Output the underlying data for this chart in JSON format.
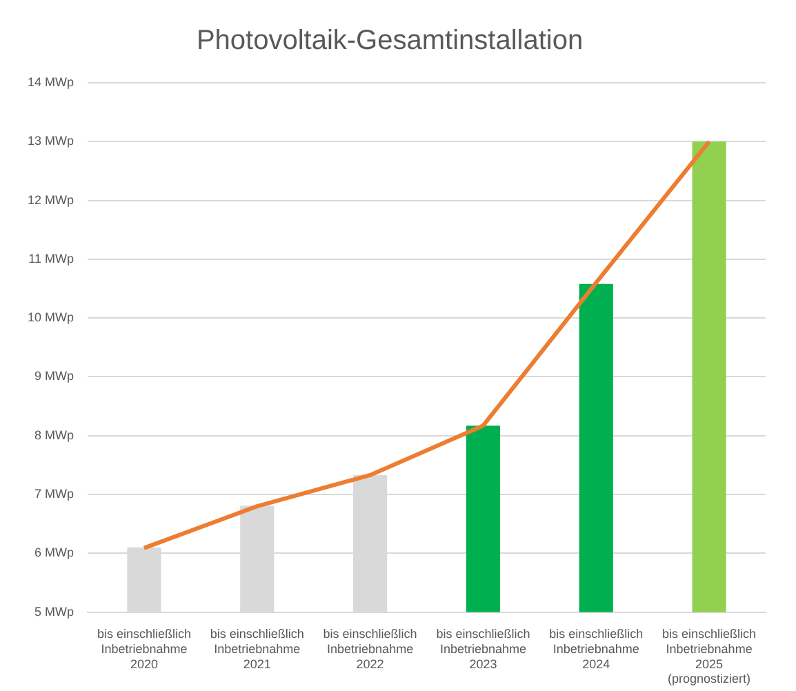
{
  "chart_data": {
    "type": "bar",
    "title": "Photovoltaik-Gesamtinstallation",
    "categories": [
      "bis einschließlich\nInbetriebnahme\n2020",
      "bis einschließlich\nInbetriebnahme\n2021",
      "bis einschließlich\nInbetriebnahme\n2022",
      "bis einschließlich\nInbetriebnahme\n2023",
      "bis einschließlich\nInbetriebnahme\n2024",
      "bis einschließlich\nInbetriebnahme\n2025\n(prognostiziert)"
    ],
    "series": [
      {
        "colors": [
          "#d9d9d9",
          "#d9d9d9",
          "#d9d9d9",
          "#00b050",
          "#00b050",
          "#92d050"
        ],
        "values": [
          6.1,
          6.81,
          7.33,
          8.17,
          10.58,
          13.0
        ]
      },
      {
        "type": "line",
        "color": "#ed7d31",
        "values": [
          6.09,
          6.8,
          7.33,
          8.17,
          10.6,
          13.0
        ]
      }
    ],
    "ylim": [
      5,
      14
    ],
    "yticks": [
      {
        "value": 5,
        "label": "5 MWp"
      },
      {
        "value": 6,
        "label": "6 MWp"
      },
      {
        "value": 7,
        "label": "7 MWp"
      },
      {
        "value": 8,
        "label": "8 MWp"
      },
      {
        "value": 9,
        "label": "9 MWp"
      },
      {
        "value": 10,
        "label": "10 MWp"
      },
      {
        "value": 11,
        "label": "11 MWp"
      },
      {
        "value": 12,
        "label": "12 MWp"
      },
      {
        "value": 13,
        "label": "13 MWp"
      },
      {
        "value": 14,
        "label": "14 MWp"
      }
    ],
    "grid": "y",
    "legend": false,
    "marker": "none"
  }
}
